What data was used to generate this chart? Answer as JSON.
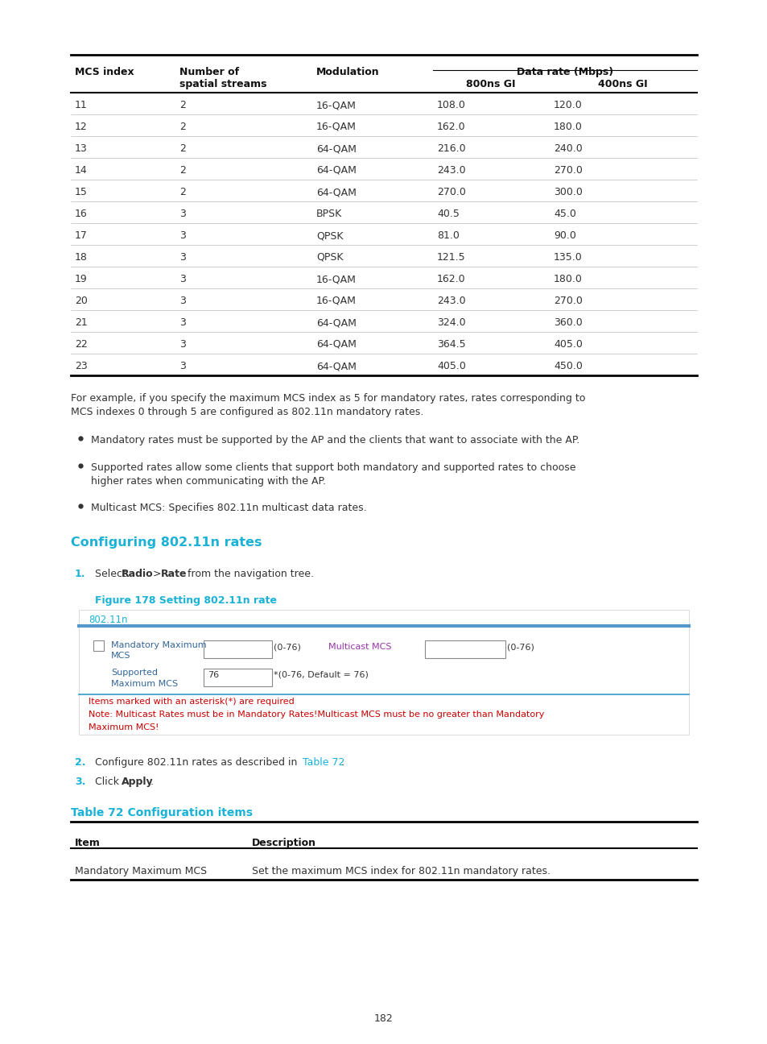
{
  "page_bg": "#ffffff",
  "table1_rows": [
    [
      "11",
      "2",
      "16-QAM",
      "108.0",
      "120.0"
    ],
    [
      "12",
      "2",
      "16-QAM",
      "162.0",
      "180.0"
    ],
    [
      "13",
      "2",
      "64-QAM",
      "216.0",
      "240.0"
    ],
    [
      "14",
      "2",
      "64-QAM",
      "243.0",
      "270.0"
    ],
    [
      "15",
      "2",
      "64-QAM",
      "270.0",
      "300.0"
    ],
    [
      "16",
      "3",
      "BPSK",
      "40.5",
      "45.0"
    ],
    [
      "17",
      "3",
      "QPSK",
      "81.0",
      "90.0"
    ],
    [
      "18",
      "3",
      "QPSK",
      "121.5",
      "135.0"
    ],
    [
      "19",
      "3",
      "16-QAM",
      "162.0",
      "180.0"
    ],
    [
      "20",
      "3",
      "16-QAM",
      "243.0",
      "270.0"
    ],
    [
      "21",
      "3",
      "64-QAM",
      "324.0",
      "360.0"
    ],
    [
      "22",
      "3",
      "64-QAM",
      "364.5",
      "405.0"
    ],
    [
      "23",
      "3",
      "64-QAM",
      "405.0",
      "450.0"
    ]
  ],
  "para1_line1": "For example, if you specify the maximum MCS index as 5 for mandatory rates, rates corresponding to",
  "para1_line2": "MCS indexes 0 through 5 are configured as 802.11n mandatory rates.",
  "bullet1": "Mandatory rates must be supported by the AP and the clients that want to associate with the AP.",
  "bullet2_line1": "Supported rates allow some clients that support both mandatory and supported rates to choose",
  "bullet2_line2": "higher rates when communicating with the AP.",
  "bullet3": "Multicast MCS: Specifies 802.11n multicast data rates.",
  "section_heading": "Configuring 802.11n rates",
  "step1_text": "Select ",
  "step1_bold1": "Radio",
  "step1_sep": " > ",
  "step1_bold2": "Rate",
  "step1_end": " from the navigation tree.",
  "fig_caption": "Figure 178 Setting 802.11n rate",
  "fig_label": "802.11n",
  "ui_mand_label1": "Mandatory Maximum",
  "ui_mand_label2": "MCS",
  "ui_mand_range": "(0-76)",
  "ui_mc_label": "Multicast MCS",
  "ui_mc_range": "(0-76)",
  "ui_supp_label1": "Supported",
  "ui_supp_label2": "Maximum MCS",
  "ui_supp_val": "76",
  "ui_supp_range": "*(0-76, Default = 76)",
  "ui_note1": "Items marked with an asterisk(*) are required",
  "ui_note2": "Note: Multicast Rates must be in Mandatory Rates!Multicast MCS must be no greater than Mandatory",
  "ui_note3": "Maximum MCS!",
  "step2_plain": "Configure 802.11n rates as described in ",
  "step2_link": "Table 72",
  "step2_end": ".",
  "step3_plain": "Click ",
  "step3_bold": "Apply",
  "step3_end": ".",
  "table2_heading": "Table 72 Configuration items",
  "table2_col1_header": "Item",
  "table2_col2_header": "Description",
  "table2_row1_col1": "Mandatory Maximum MCS",
  "table2_row1_col2": "Set the maximum MCS index for 802.11n mandatory rates.",
  "page_number": "182",
  "cyan": "#1ab2d6",
  "text_color": "#333333",
  "purple_ui": "#9933aa",
  "blue_ui": "#336699",
  "red_note": "#cc0000",
  "black": "#111111"
}
